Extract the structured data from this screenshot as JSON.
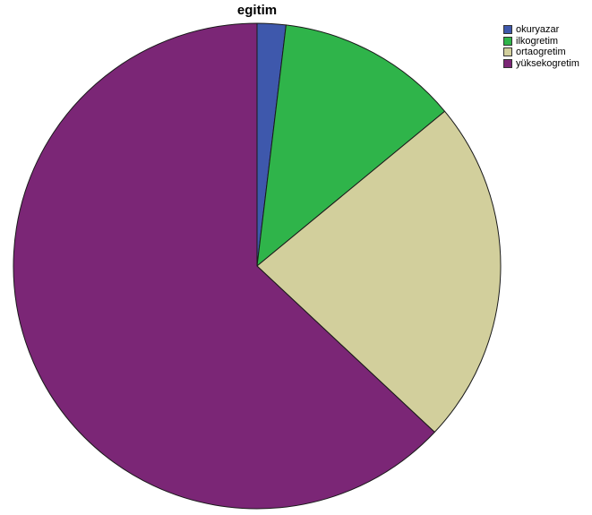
{
  "chart_data": {
    "type": "pie",
    "title": "egitim",
    "start_angle_deg": 0,
    "direction": "clockwise",
    "legend_position": "top-right",
    "slices": [
      {
        "label": "okuryazar",
        "value": 1.9,
        "color": "#3e58ac"
      },
      {
        "label": "ilkogretim",
        "value": 12.1,
        "color": "#2fb44a"
      },
      {
        "label": "ortaogretim",
        "value": 23.0,
        "color": "#d2cf9c"
      },
      {
        "label": "yüksekogretim",
        "value": 63.0,
        "color": "#7b2676"
      }
    ]
  }
}
